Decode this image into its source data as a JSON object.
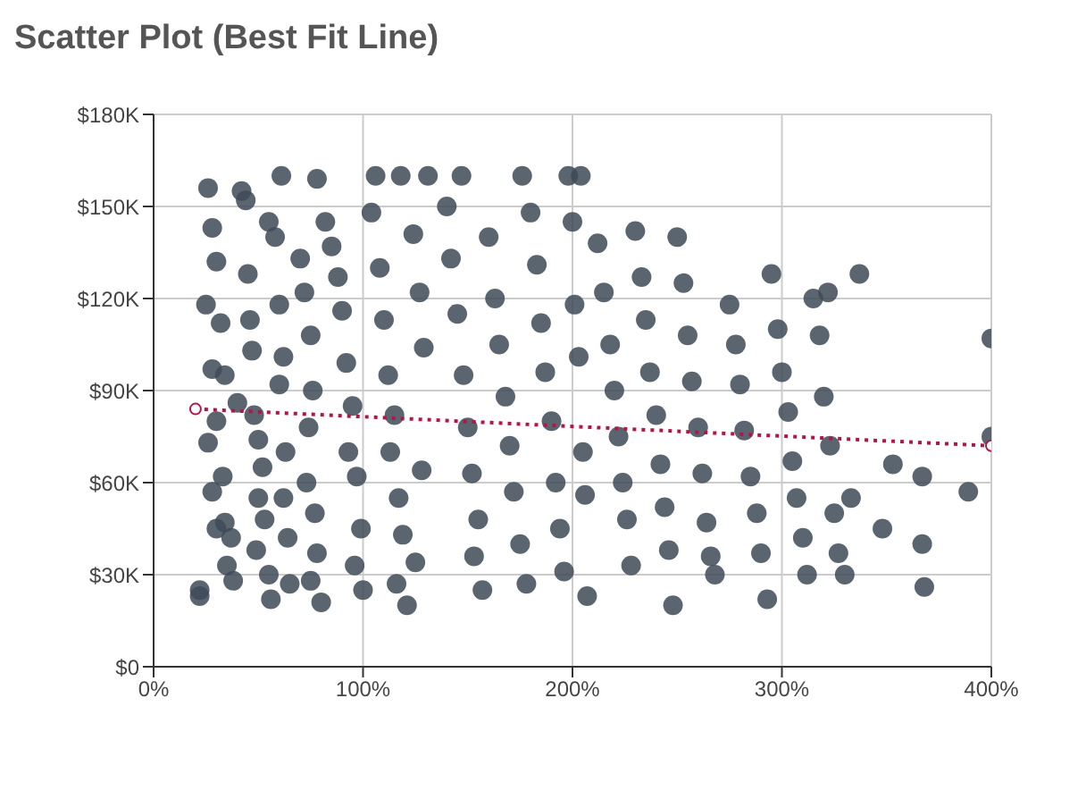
{
  "chart_data": {
    "type": "scatter",
    "title": "Scatter Plot (Best Fit Line)",
    "xlim": [
      0,
      400
    ],
    "xticks": [
      {
        "value": 0,
        "label": "0%"
      },
      {
        "value": 100,
        "label": "100%"
      },
      {
        "value": 200,
        "label": "200%"
      },
      {
        "value": 300,
        "label": "300%"
      },
      {
        "value": 400,
        "label": "400%"
      }
    ],
    "ylim": [
      0,
      180000
    ],
    "yticks": [
      {
        "value": 0,
        "label": "$0"
      },
      {
        "value": 30000,
        "label": "$30K"
      },
      {
        "value": 60000,
        "label": "$60K"
      },
      {
        "value": 90000,
        "label": "$90K"
      },
      {
        "value": 120000,
        "label": "$120K"
      },
      {
        "value": 150000,
        "label": "$150K"
      },
      {
        "value": 180000,
        "label": "$180K"
      }
    ],
    "grid": true,
    "legend": false,
    "series": [
      {
        "color": "#3e4a57",
        "marker": "circle",
        "x": [
          22,
          22,
          26,
          28,
          30,
          25,
          32,
          28,
          34,
          30,
          26,
          33,
          28,
          34,
          30,
          37,
          35,
          38,
          40,
          42,
          44,
          45,
          46,
          47,
          48,
          50,
          52,
          50,
          53,
          49,
          55,
          56,
          55,
          58,
          60,
          62,
          60,
          63,
          62,
          64,
          65,
          61,
          70,
          72,
          75,
          76,
          74,
          73,
          77,
          78,
          75,
          80,
          78,
          82,
          85,
          88,
          90,
          92,
          95,
          93,
          97,
          99,
          96,
          100,
          104,
          106,
          108,
          110,
          112,
          115,
          113,
          117,
          119,
          116,
          121,
          118,
          124,
          127,
          129,
          128,
          131,
          125,
          140,
          142,
          145,
          147,
          148,
          150,
          152,
          155,
          153,
          157,
          160,
          163,
          165,
          168,
          170,
          172,
          175,
          176,
          178,
          180,
          183,
          185,
          187,
          190,
          192,
          194,
          196,
          198,
          200,
          201,
          203,
          204,
          205,
          206,
          207,
          212,
          215,
          218,
          220,
          222,
          224,
          226,
          228,
          230,
          233,
          235,
          237,
          240,
          242,
          244,
          246,
          248,
          250,
          253,
          255,
          257,
          260,
          262,
          264,
          266,
          268,
          275,
          278,
          280,
          282,
          285,
          288,
          290,
          293,
          295,
          298,
          300,
          303,
          305,
          307,
          310,
          312,
          315,
          318,
          320,
          322,
          323,
          325,
          327,
          330,
          337,
          333,
          348,
          353,
          367,
          367,
          368,
          389,
          400,
          400
        ],
        "values": [
          25000,
          23000,
          156000,
          143000,
          132000,
          118000,
          112000,
          97000,
          95000,
          80000,
          73000,
          62000,
          57000,
          47000,
          45000,
          42000,
          33000,
          28000,
          86000,
          155000,
          152000,
          128000,
          113000,
          103000,
          82000,
          74000,
          65000,
          55000,
          48000,
          38000,
          30000,
          22000,
          145000,
          140000,
          118000,
          101000,
          92000,
          70000,
          55000,
          42000,
          27000,
          160000,
          133000,
          122000,
          108000,
          90000,
          78000,
          60000,
          50000,
          37000,
          28000,
          21000,
          159000,
          145000,
          137000,
          127000,
          116000,
          99000,
          85000,
          70000,
          62000,
          45000,
          33000,
          25000,
          148000,
          160000,
          130000,
          113000,
          95000,
          82000,
          70000,
          55000,
          43000,
          27000,
          20000,
          160000,
          141000,
          122000,
          104000,
          64000,
          160000,
          34000,
          150000,
          133000,
          115000,
          160000,
          95000,
          78000,
          63000,
          48000,
          36000,
          25000,
          140000,
          120000,
          105000,
          88000,
          72000,
          57000,
          40000,
          160000,
          27000,
          148000,
          131000,
          112000,
          96000,
          80000,
          60000,
          45000,
          31000,
          160000,
          145000,
          118000,
          101000,
          160000,
          70000,
          56000,
          23000,
          138000,
          122000,
          105000,
          90000,
          75000,
          60000,
          48000,
          33000,
          142000,
          127000,
          113000,
          96000,
          82000,
          66000,
          52000,
          38000,
          20000,
          140000,
          125000,
          108000,
          93000,
          78000,
          63000,
          47000,
          36000,
          30000,
          118000,
          105000,
          92000,
          77000,
          62000,
          50000,
          37000,
          22000,
          128000,
          110000,
          96000,
          83000,
          67000,
          55000,
          42000,
          30000,
          120000,
          108000,
          88000,
          122000,
          72000,
          50000,
          37000,
          30000,
          128000,
          55000,
          45000,
          66000,
          62000,
          40000,
          26000,
          57000,
          107000,
          75000
        ]
      },
      {
        "type": "line",
        "color": "#b0164a",
        "marker": "circle",
        "line_style": "dotted",
        "x": [
          20,
          400
        ],
        "values": [
          84000,
          72000
        ]
      }
    ]
  }
}
